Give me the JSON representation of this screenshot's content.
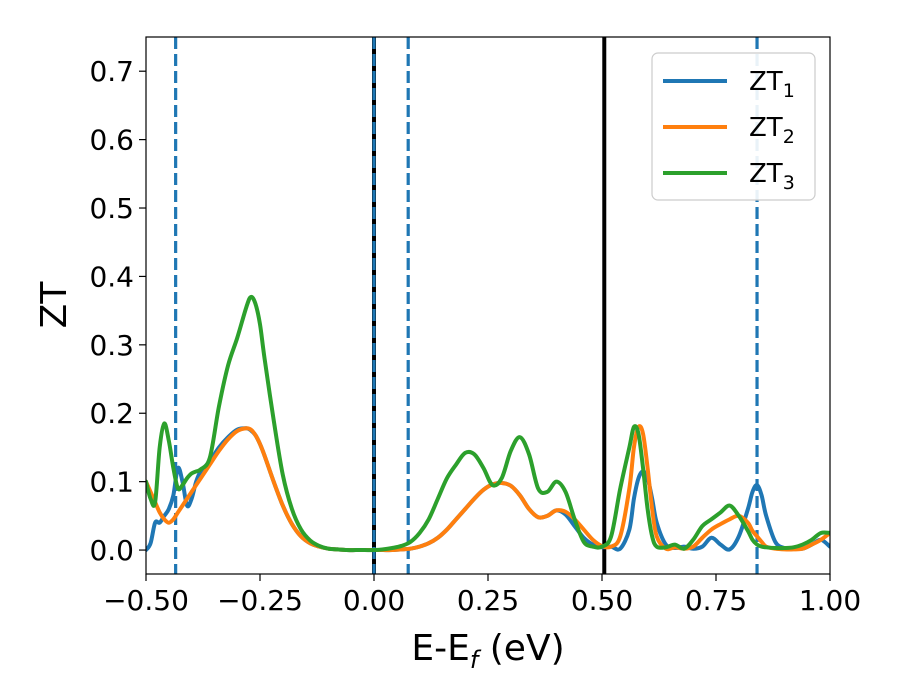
{
  "chart_data": {
    "type": "line",
    "xlabel": "E-E",
    "xlabel_sub": "f",
    "xlabel_unit": " (eV)",
    "ylabel": "ZT",
    "xlim": [
      -0.5,
      1.0
    ],
    "ylim": [
      -0.035,
      0.75
    ],
    "xticks": [
      -0.5,
      -0.25,
      0.0,
      0.25,
      0.5,
      0.75,
      1.0
    ],
    "xtick_labels": [
      "−0.50",
      "−0.25",
      "0.00",
      "0.25",
      "0.50",
      "0.75",
      "1.00"
    ],
    "yticks": [
      0.0,
      0.1,
      0.2,
      0.3,
      0.4,
      0.5,
      0.6,
      0.7
    ],
    "ytick_labels": [
      "0.0",
      "0.1",
      "0.2",
      "0.3",
      "0.4",
      "0.5",
      "0.6",
      "0.7"
    ],
    "grid": false,
    "legend_position": "top-right",
    "vlines": [
      {
        "x": -0.435,
        "style": "dashed",
        "color": "#1f77b4"
      },
      {
        "x": 0.0,
        "style": "solid",
        "color": "#000000"
      },
      {
        "x": 0.0,
        "style": "dashed",
        "color": "#1f77b4"
      },
      {
        "x": 0.075,
        "style": "dashed",
        "color": "#1f77b4"
      },
      {
        "x": 0.505,
        "style": "solid",
        "color": "#000000"
      },
      {
        "x": 0.84,
        "style": "dashed",
        "color": "#1f77b4"
      }
    ],
    "series": [
      {
        "name": "ZT",
        "sub": "1",
        "color": "#1f77b4",
        "x": [
          -0.5,
          -0.49,
          -0.48,
          -0.47,
          -0.46,
          -0.45,
          -0.44,
          -0.43,
          -0.42,
          -0.41,
          -0.4,
          -0.39,
          -0.38,
          -0.36,
          -0.34,
          -0.32,
          -0.3,
          -0.28,
          -0.27,
          -0.26,
          -0.25,
          -0.24,
          -0.22,
          -0.2,
          -0.18,
          -0.16,
          -0.14,
          -0.12,
          -0.1,
          -0.08,
          -0.06,
          -0.04,
          -0.02,
          0.0,
          0.02,
          0.04,
          0.06,
          0.08,
          0.1,
          0.12,
          0.14,
          0.16,
          0.18,
          0.2,
          0.22,
          0.24,
          0.26,
          0.28,
          0.3,
          0.32,
          0.34,
          0.36,
          0.38,
          0.4,
          0.42,
          0.44,
          0.46,
          0.48,
          0.5,
          0.52,
          0.54,
          0.56,
          0.57,
          0.58,
          0.59,
          0.6,
          0.61,
          0.62,
          0.64,
          0.66,
          0.68,
          0.7,
          0.72,
          0.74,
          0.76,
          0.78,
          0.8,
          0.82,
          0.83,
          0.84,
          0.85,
          0.86,
          0.88,
          0.9,
          0.92,
          0.94,
          0.96,
          0.98,
          1.0
        ],
        "y": [
          0.0,
          0.01,
          0.04,
          0.04,
          0.05,
          0.06,
          0.08,
          0.12,
          0.1,
          0.065,
          0.075,
          0.1,
          0.115,
          0.13,
          0.15,
          0.165,
          0.176,
          0.178,
          0.175,
          0.168,
          0.155,
          0.138,
          0.1,
          0.065,
          0.038,
          0.02,
          0.01,
          0.005,
          0.002,
          0.001,
          0.0,
          0.0,
          0.0,
          0.0,
          0.0,
          0.0,
          0.001,
          0.002,
          0.005,
          0.01,
          0.018,
          0.03,
          0.045,
          0.06,
          0.075,
          0.088,
          0.096,
          0.098,
          0.094,
          0.08,
          0.06,
          0.048,
          0.05,
          0.058,
          0.052,
          0.035,
          0.018,
          0.008,
          0.004,
          0.005,
          0.002,
          0.03,
          0.075,
          0.105,
          0.115,
          0.105,
          0.075,
          0.04,
          0.008,
          0.003,
          0.005,
          0.002,
          0.005,
          0.018,
          0.008,
          0.001,
          0.02,
          0.06,
          0.085,
          0.095,
          0.08,
          0.05,
          0.012,
          0.003,
          0.002,
          0.002,
          0.008,
          0.015,
          0.005
        ]
      },
      {
        "name": "ZT",
        "sub": "2",
        "color": "#ff7f0e",
        "x": [
          -0.5,
          -0.49,
          -0.48,
          -0.47,
          -0.46,
          -0.45,
          -0.44,
          -0.43,
          -0.42,
          -0.41,
          -0.4,
          -0.39,
          -0.38,
          -0.36,
          -0.34,
          -0.32,
          -0.3,
          -0.28,
          -0.27,
          -0.26,
          -0.25,
          -0.24,
          -0.22,
          -0.2,
          -0.18,
          -0.16,
          -0.14,
          -0.12,
          -0.1,
          -0.08,
          -0.06,
          -0.04,
          -0.02,
          0.0,
          0.02,
          0.04,
          0.06,
          0.08,
          0.1,
          0.12,
          0.14,
          0.16,
          0.18,
          0.2,
          0.22,
          0.24,
          0.26,
          0.28,
          0.3,
          0.32,
          0.34,
          0.36,
          0.38,
          0.4,
          0.42,
          0.44,
          0.46,
          0.48,
          0.5,
          0.52,
          0.54,
          0.56,
          0.57,
          0.58,
          0.59,
          0.6,
          0.61,
          0.62,
          0.64,
          0.66,
          0.68,
          0.7,
          0.72,
          0.74,
          0.76,
          0.78,
          0.8,
          0.82,
          0.83,
          0.84,
          0.85,
          0.86,
          0.88,
          0.9,
          0.92,
          0.94,
          0.96,
          0.98,
          1.0
        ],
        "y": [
          0.1,
          0.085,
          0.07,
          0.055,
          0.045,
          0.04,
          0.045,
          0.055,
          0.065,
          0.075,
          0.085,
          0.095,
          0.105,
          0.125,
          0.145,
          0.162,
          0.174,
          0.178,
          0.176,
          0.168,
          0.155,
          0.138,
          0.1,
          0.065,
          0.038,
          0.02,
          0.01,
          0.005,
          0.002,
          0.001,
          0.0,
          0.0,
          0.0,
          0.0,
          0.0,
          0.0,
          0.001,
          0.002,
          0.005,
          0.01,
          0.018,
          0.03,
          0.045,
          0.06,
          0.075,
          0.088,
          0.096,
          0.098,
          0.094,
          0.08,
          0.06,
          0.048,
          0.05,
          0.058,
          0.056,
          0.045,
          0.03,
          0.015,
          0.006,
          0.005,
          0.02,
          0.09,
          0.15,
          0.18,
          0.17,
          0.12,
          0.06,
          0.02,
          0.002,
          0.004,
          0.002,
          0.005,
          0.018,
          0.03,
          0.038,
          0.045,
          0.05,
          0.04,
          0.028,
          0.02,
          0.012,
          0.005,
          0.002,
          0.001,
          0.001,
          0.002,
          0.008,
          0.015,
          0.025
        ]
      },
      {
        "name": "ZT",
        "sub": "3",
        "color": "#2ca02c",
        "x": [
          -0.5,
          -0.49,
          -0.48,
          -0.47,
          -0.46,
          -0.45,
          -0.44,
          -0.43,
          -0.42,
          -0.41,
          -0.4,
          -0.39,
          -0.38,
          -0.36,
          -0.34,
          -0.32,
          -0.3,
          -0.28,
          -0.27,
          -0.26,
          -0.25,
          -0.24,
          -0.22,
          -0.2,
          -0.18,
          -0.16,
          -0.14,
          -0.12,
          -0.1,
          -0.08,
          -0.06,
          -0.04,
          -0.02,
          0.0,
          0.02,
          0.04,
          0.06,
          0.08,
          0.1,
          0.12,
          0.14,
          0.16,
          0.18,
          0.2,
          0.22,
          0.24,
          0.26,
          0.28,
          0.3,
          0.32,
          0.34,
          0.36,
          0.38,
          0.4,
          0.42,
          0.44,
          0.46,
          0.48,
          0.5,
          0.52,
          0.54,
          0.56,
          0.57,
          0.58,
          0.59,
          0.6,
          0.61,
          0.62,
          0.64,
          0.66,
          0.68,
          0.7,
          0.72,
          0.74,
          0.76,
          0.78,
          0.8,
          0.82,
          0.83,
          0.84,
          0.85,
          0.86,
          0.88,
          0.9,
          0.92,
          0.94,
          0.96,
          0.98,
          1.0
        ],
        "y": [
          0.1,
          0.075,
          0.07,
          0.15,
          0.185,
          0.16,
          0.12,
          0.09,
          0.095,
          0.105,
          0.112,
          0.115,
          0.118,
          0.135,
          0.21,
          0.27,
          0.31,
          0.355,
          0.37,
          0.36,
          0.33,
          0.28,
          0.19,
          0.11,
          0.06,
          0.03,
          0.014,
          0.006,
          0.002,
          0.001,
          0.0,
          0.0,
          0.0,
          0.0,
          0.001,
          0.003,
          0.006,
          0.012,
          0.025,
          0.045,
          0.075,
          0.105,
          0.125,
          0.142,
          0.14,
          0.12,
          0.095,
          0.105,
          0.145,
          0.165,
          0.14,
          0.09,
          0.085,
          0.1,
          0.085,
          0.045,
          0.012,
          0.005,
          0.005,
          0.02,
          0.09,
          0.15,
          0.18,
          0.17,
          0.12,
          0.06,
          0.02,
          0.005,
          0.004,
          0.008,
          0.002,
          0.015,
          0.035,
          0.045,
          0.055,
          0.065,
          0.05,
          0.028,
          0.015,
          0.008,
          0.005,
          0.004,
          0.003,
          0.003,
          0.004,
          0.008,
          0.015,
          0.025,
          0.025
        ]
      }
    ]
  }
}
